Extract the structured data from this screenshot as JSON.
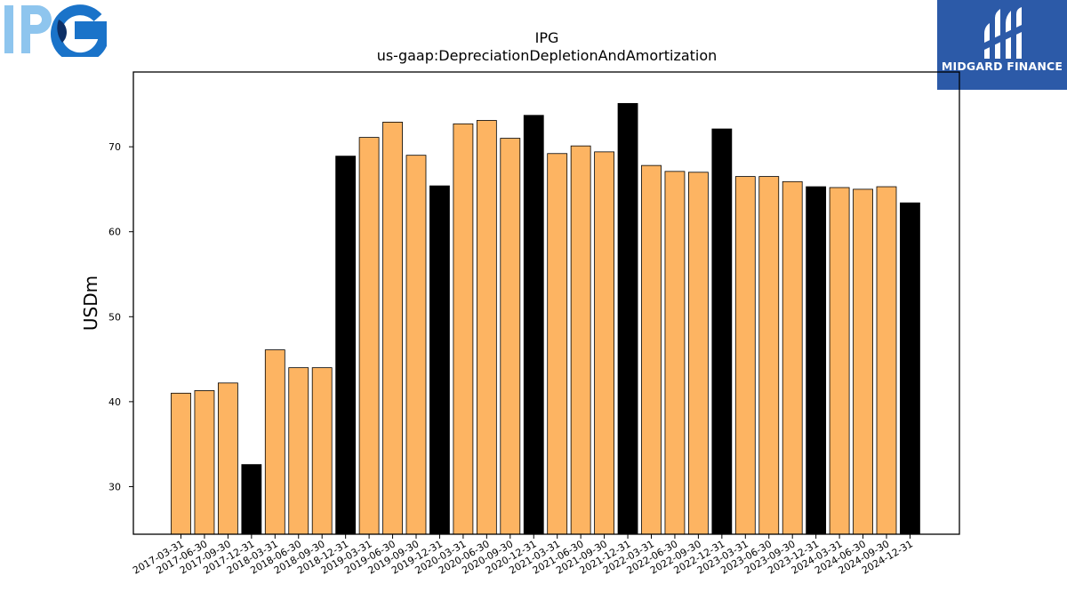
{
  "logo_left": {
    "text": "IPG",
    "icon": "ipg-logo"
  },
  "logo_right": {
    "brand": "MIDGARD FINANCE",
    "icon": "midgard-finance-logo"
  },
  "chart_data": {
    "type": "bar",
    "title": "IPG",
    "subtitle": "us-gaap:DepreciationDepletionAndAmortization",
    "xlabel": "",
    "ylabel": "USDm",
    "ylim": [
      24.4,
      78.8
    ],
    "yticks": [
      30,
      40,
      50,
      60,
      70
    ],
    "grid": false,
    "colors": {
      "quarter": "#fdb462",
      "year_end": "#000000",
      "edge": "#000000"
    },
    "categories": [
      "2017-03-31",
      "2017-06-30",
      "2017-09-30",
      "2017-12-31",
      "2018-03-31",
      "2018-06-30",
      "2018-09-30",
      "2018-12-31",
      "2019-03-31",
      "2019-06-30",
      "2019-09-30",
      "2019-12-31",
      "2020-03-31",
      "2020-06-30",
      "2020-09-30",
      "2020-12-31",
      "2021-03-31",
      "2021-06-30",
      "2021-09-30",
      "2021-12-31",
      "2022-03-31",
      "2022-06-30",
      "2022-09-30",
      "2022-12-31",
      "2023-03-31",
      "2023-06-30",
      "2023-09-30",
      "2023-12-31",
      "2024-03-31",
      "2024-06-30",
      "2024-09-30",
      "2024-12-31"
    ],
    "values": [
      41.0,
      41.3,
      42.2,
      32.6,
      46.1,
      44.0,
      44.0,
      68.9,
      71.1,
      72.9,
      69.0,
      65.4,
      72.7,
      73.1,
      71.0,
      73.7,
      69.2,
      70.1,
      69.4,
      75.1,
      67.8,
      67.1,
      67.0,
      72.1,
      66.5,
      66.5,
      65.9,
      65.3,
      65.2,
      65.0,
      65.3,
      63.4
    ]
  }
}
